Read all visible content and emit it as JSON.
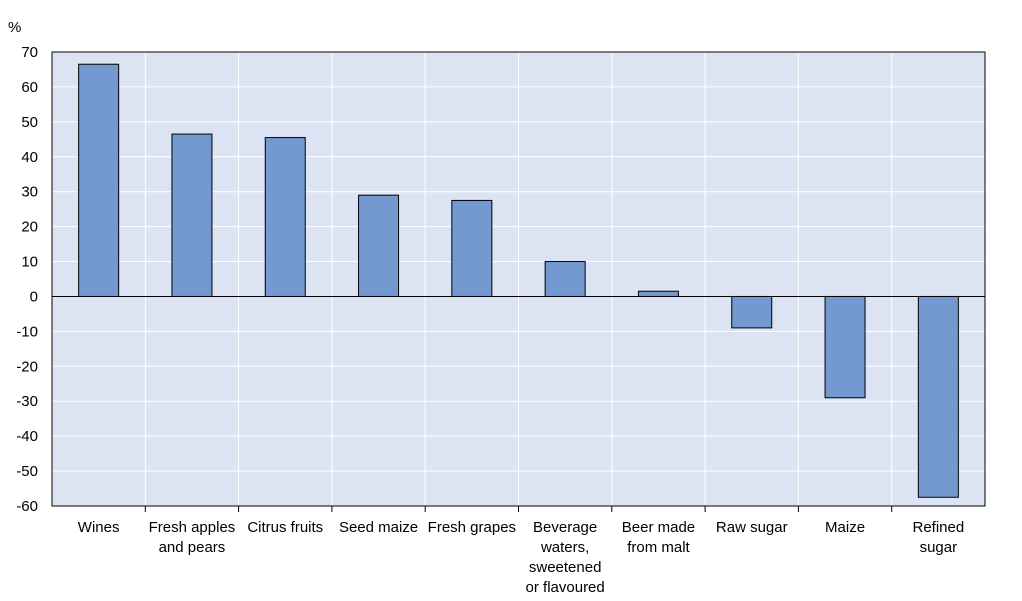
{
  "chart_data": {
    "type": "bar",
    "ylabel": "%",
    "ylim": [
      -60,
      70
    ],
    "yticks": [
      70,
      60,
      50,
      40,
      30,
      20,
      10,
      0,
      -10,
      -20,
      -30,
      -40,
      -50,
      -60
    ],
    "grid": true,
    "categories": [
      [
        "Wines"
      ],
      [
        "Fresh apples",
        "and pears"
      ],
      [
        "Citrus fruits"
      ],
      [
        "Seed maize"
      ],
      [
        "Fresh grapes"
      ],
      [
        "Beverage",
        "waters,",
        "sweetened",
        "or flavoured"
      ],
      [
        "Beer made",
        "from malt"
      ],
      [
        "Raw sugar"
      ],
      [
        "Maize"
      ],
      [
        "Refined",
        "sugar"
      ]
    ],
    "values": [
      66.5,
      46.5,
      45.5,
      29,
      27.5,
      10,
      1.5,
      -9,
      -29,
      -57.5
    ],
    "colors": {
      "bar": "#7399d0",
      "plot_bg": "#dce3f3",
      "grid": "#ffffff",
      "axis": "#000000"
    }
  }
}
